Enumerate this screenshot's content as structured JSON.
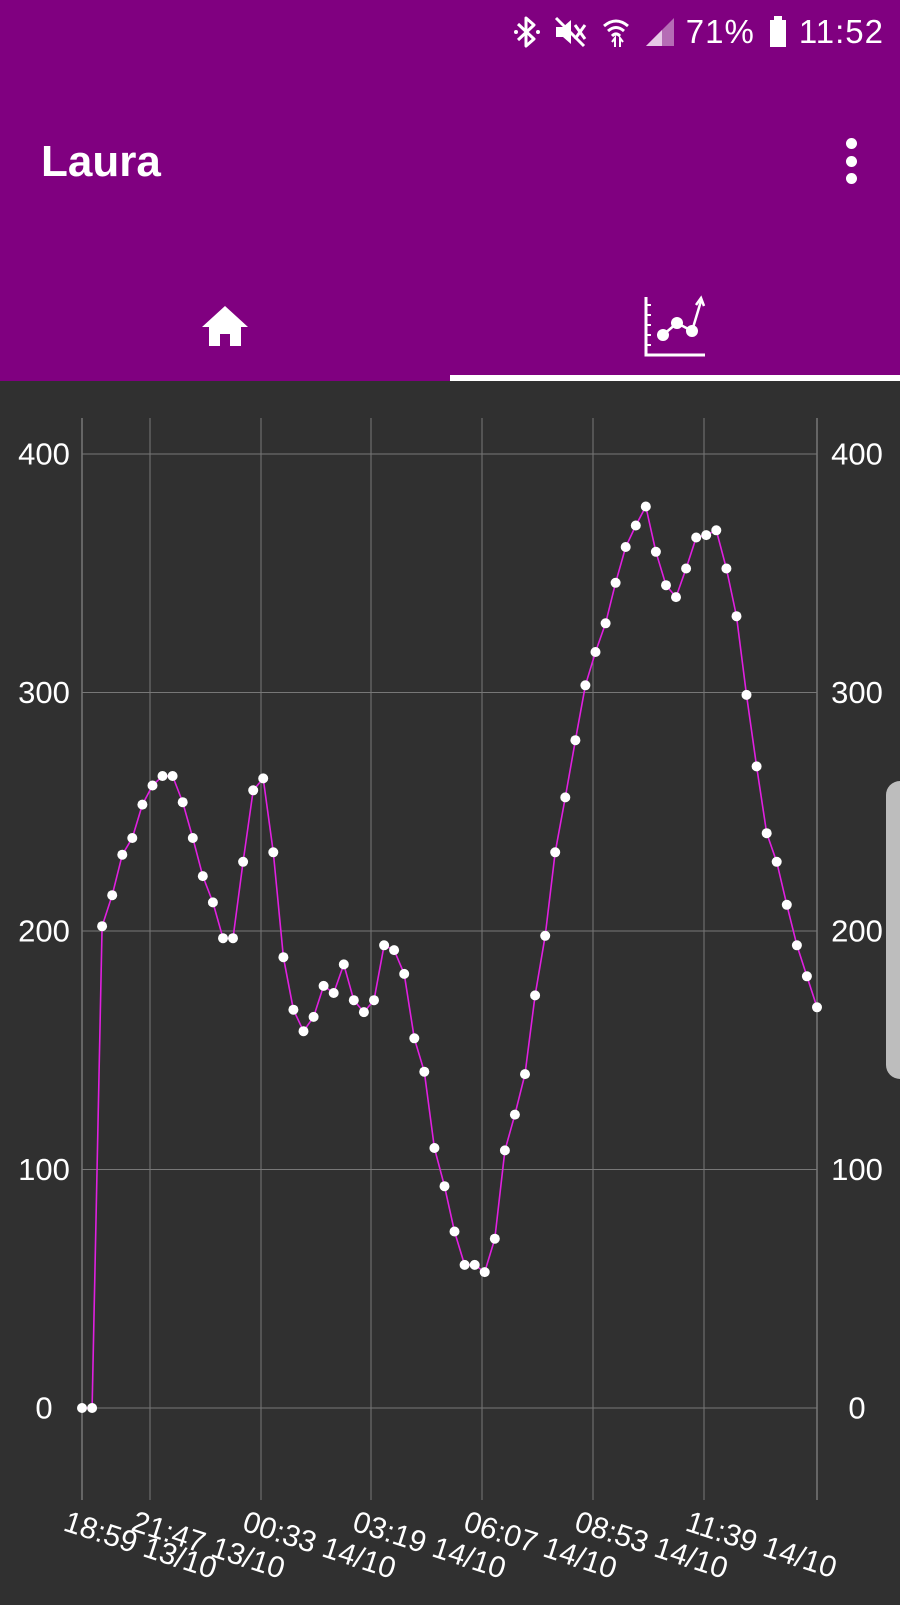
{
  "status_bar": {
    "icons": [
      "bluetooth-icon",
      "mute-icon",
      "wifi-icon",
      "signal-icon",
      "battery-icon"
    ],
    "battery_percent": "71%",
    "time": "11:52"
  },
  "app_bar": {
    "title": "Laura",
    "menu_icon": "more-vert-icon"
  },
  "tabs": [
    {
      "icon": "home-icon",
      "selected": false
    },
    {
      "icon": "chart-icon",
      "selected": true
    }
  ],
  "colors": {
    "primary": "#800080",
    "background": "#303030",
    "line": "#e020e0",
    "points": "#ffffff",
    "grid": "#777777",
    "text": "#ffffff"
  },
  "chart_data": {
    "type": "line",
    "grid": true,
    "ylim": [
      -38,
      414
    ],
    "y_ticks": [
      "0",
      "100",
      "200",
      "300",
      "400"
    ],
    "x_tick_labels": [
      "18:59 13/10",
      "21:47 13/10",
      "00:33 14/10",
      "03:19 14/10",
      "06:07 14/10",
      "08:53 14/10",
      "11:39 14/10"
    ],
    "series": [
      {
        "values": [
          0,
          0,
          202,
          215,
          232,
          239,
          253,
          261,
          265,
          265,
          254,
          239,
          223,
          212,
          197,
          197,
          229,
          259,
          264,
          233,
          189,
          167,
          158,
          164,
          177,
          174,
          186,
          171,
          166,
          171,
          194,
          192,
          182,
          155,
          141,
          109,
          93,
          74,
          60,
          60,
          57,
          71,
          108,
          123,
          140,
          173,
          198,
          233,
          256,
          280,
          303,
          317,
          329,
          346,
          361,
          370,
          378,
          359,
          345,
          340,
          352,
          365,
          366,
          368,
          352,
          332,
          299,
          269,
          241,
          229,
          211,
          194,
          181,
          168
        ]
      }
    ]
  }
}
